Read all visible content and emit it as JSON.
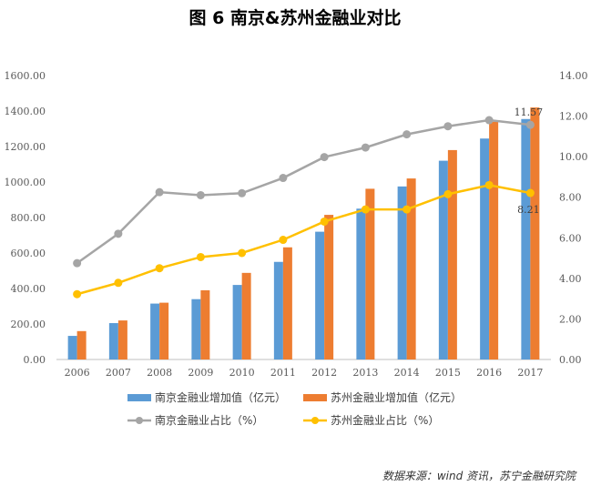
{
  "figure": {
    "title": "图 6    南京&苏州金融业对比",
    "source": "数据来源：wind 资讯，苏宁金融研究院"
  },
  "chart_data": {
    "type": "bar",
    "categories": [
      "2006",
      "2007",
      "2008",
      "2009",
      "2010",
      "2011",
      "2012",
      "2013",
      "2014",
      "2015",
      "2016",
      "2017"
    ],
    "y_left": {
      "ylim": [
        0,
        1600
      ],
      "ticks": [
        "0.00",
        "200.00",
        "400.00",
        "600.00",
        "800.00",
        "1000.00",
        "1200.00",
        "1400.00",
        "1600.00"
      ]
    },
    "y_right": {
      "ylim": [
        0,
        14
      ],
      "ticks": [
        "0.00",
        "2.00",
        "4.00",
        "6.00",
        "8.00",
        "10.00",
        "12.00",
        "14.00"
      ]
    },
    "series": [
      {
        "name": "南京金融业增加值（亿元）",
        "type": "bar",
        "axis": "left",
        "color": "#5b9bd5",
        "values": [
          133,
          205,
          315,
          340,
          420,
          550,
          720,
          850,
          975,
          1120,
          1245,
          1355
        ]
      },
      {
        "name": "苏州金融业增加值（亿元）",
        "type": "bar",
        "axis": "left",
        "color": "#ed7d31",
        "values": [
          160,
          220,
          320,
          390,
          488,
          632,
          815,
          962,
          1020,
          1180,
          1340,
          1420
        ]
      },
      {
        "name": "南京金融业占比（%）",
        "type": "line",
        "axis": "right",
        "color": "#a5a5a5",
        "values": [
          4.75,
          6.2,
          8.25,
          8.1,
          8.2,
          8.95,
          9.98,
          10.45,
          11.1,
          11.5,
          11.8,
          11.57
        ]
      },
      {
        "name": "苏州金融业占比（%）",
        "type": "line",
        "axis": "right",
        "color": "#ffc000",
        "values": [
          3.22,
          3.78,
          4.5,
          5.05,
          5.25,
          5.9,
          6.8,
          7.4,
          7.4,
          8.15,
          8.6,
          8.21
        ]
      }
    ],
    "annotations": [
      {
        "text": "11.57",
        "series": 2,
        "index": 11
      },
      {
        "text": "8.21",
        "series": 3,
        "index": 11
      }
    ],
    "grid": false,
    "legend_placement": "bottom"
  }
}
